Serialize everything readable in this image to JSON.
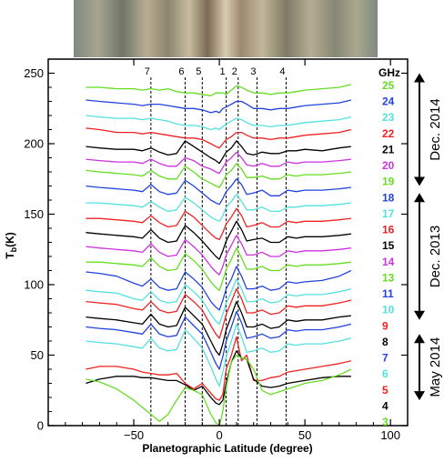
{
  "chart_data": {
    "type": "line",
    "xlabel": "Planetographic Latitude (degree)",
    "ylabel": "T_b (K)",
    "ylabel_main": "T",
    "ylabel_sub": "b",
    "ylabel_unit": "(K)",
    "xlim": [
      -100,
      110
    ],
    "ylim": [
      0,
      260
    ],
    "xticks": [
      -50,
      0,
      50,
      100
    ],
    "yticks": [
      0,
      50,
      100,
      150,
      200,
      250
    ],
    "legend_title": "GHz",
    "legend_position": "right",
    "band_lines": [
      {
        "label": "7",
        "x": -40
      },
      {
        "label": "6",
        "x": -20
      },
      {
        "label": "5",
        "x": -10
      },
      {
        "label": "1",
        "x": 4
      },
      {
        "label": "2",
        "x": 11
      },
      {
        "label": "3",
        "x": 22
      },
      {
        "label": "4",
        "x": 39
      }
    ],
    "epochs": [
      {
        "label": "Dec. 2014",
        "range": [
          170,
          250
        ]
      },
      {
        "label": "Dec. 2013",
        "range": [
          75,
          165
        ]
      },
      {
        "label": "May 2014",
        "range": [
          18,
          65
        ]
      }
    ],
    "x": [
      -78,
      -70,
      -60,
      -50,
      -45,
      -40,
      -35,
      -30,
      -25,
      -20,
      -15,
      -10,
      -5,
      -2,
      0,
      2,
      4,
      7,
      10,
      13,
      16,
      20,
      25,
      30,
      35,
      40,
      45,
      50,
      60,
      70,
      77
    ],
    "series": [
      {
        "name": "25",
        "color": "#66dd22",
        "values": [
          240,
          240,
          239,
          239,
          238,
          239,
          238,
          239,
          237,
          236,
          236,
          235,
          234,
          236,
          236,
          236,
          235,
          238,
          241,
          240,
          238,
          236,
          236,
          235,
          236,
          236,
          237,
          238,
          239,
          240,
          242
        ]
      },
      {
        "name": "24",
        "color": "#2244dd",
        "values": [
          231,
          230,
          229,
          228,
          227,
          228,
          228,
          227,
          226,
          225,
          225,
          224,
          222,
          223,
          222,
          225,
          226,
          228,
          230,
          230,
          228,
          225,
          225,
          224,
          225,
          225,
          226,
          227,
          228,
          229,
          231
        ]
      },
      {
        "name": "23",
        "color": "#55e0e0",
        "values": [
          220,
          219,
          218,
          218,
          217,
          218,
          217,
          216,
          214,
          213,
          213,
          212,
          210,
          211,
          210,
          212,
          214,
          216,
          218,
          217,
          215,
          213,
          213,
          212,
          213,
          213,
          214,
          215,
          216,
          217,
          219
        ]
      },
      {
        "name": "22",
        "color": "#ee2222",
        "values": [
          211,
          210,
          208,
          208,
          207,
          208,
          207,
          206,
          205,
          204,
          204,
          203,
          200,
          198,
          197,
          200,
          203,
          205,
          208,
          208,
          206,
          204,
          204,
          203,
          204,
          204,
          205,
          206,
          207,
          208,
          210
        ]
      },
      {
        "name": "21",
        "color": "#000000",
        "values": [
          198,
          197,
          196,
          196,
          195,
          197,
          194,
          192,
          193,
          202,
          198,
          194,
          190,
          188,
          186,
          190,
          194,
          197,
          202,
          198,
          193,
          192,
          194,
          193,
          193,
          195,
          195,
          196,
          195,
          197,
          198
        ]
      },
      {
        "name": "20",
        "color": "#cc33dd",
        "values": [
          189,
          188,
          187,
          187,
          186,
          189,
          186,
          184,
          184,
          190,
          188,
          184,
          182,
          180,
          179,
          183,
          187,
          190,
          194,
          190,
          185,
          184,
          186,
          184,
          184,
          187,
          186,
          187,
          187,
          188,
          189
        ]
      },
      {
        "name": "19",
        "color": "#66dd22",
        "values": [
          181,
          180,
          179,
          178,
          177,
          181,
          177,
          175,
          175,
          184,
          180,
          175,
          172,
          170,
          169,
          173,
          178,
          181,
          186,
          182,
          176,
          176,
          177,
          175,
          175,
          178,
          177,
          178,
          178,
          179,
          180
        ]
      },
      {
        "name": "18",
        "color": "#2244dd",
        "values": [
          170,
          169,
          168,
          167,
          166,
          171,
          166,
          164,
          165,
          174,
          170,
          165,
          160,
          158,
          157,
          161,
          166,
          170,
          175,
          171,
          164,
          165,
          167,
          163,
          163,
          167,
          166,
          167,
          167,
          168,
          169
        ]
      },
      {
        "name": "17",
        "color": "#55e0e0",
        "values": [
          158,
          158,
          157,
          156,
          155,
          159,
          155,
          152,
          153,
          162,
          158,
          153,
          148,
          146,
          145,
          149,
          155,
          159,
          164,
          159,
          153,
          153,
          155,
          152,
          152,
          155,
          155,
          156,
          156,
          157,
          158
        ]
      },
      {
        "name": "16",
        "color": "#ee2222",
        "values": [
          147,
          147,
          146,
          145,
          144,
          149,
          144,
          141,
          142,
          152,
          148,
          142,
          136,
          133,
          132,
          137,
          143,
          148,
          154,
          149,
          141,
          142,
          144,
          141,
          141,
          145,
          144,
          145,
          145,
          146,
          147
        ]
      },
      {
        "name": "15",
        "color": "#000000",
        "values": [
          137,
          136,
          135,
          134,
          133,
          139,
          133,
          130,
          131,
          142,
          137,
          131,
          124,
          120,
          118,
          124,
          131,
          138,
          145,
          139,
          131,
          132,
          133,
          130,
          130,
          134,
          133,
          134,
          134,
          135,
          136
        ]
      },
      {
        "name": "14",
        "color": "#cc33dd",
        "values": [
          127,
          126,
          125,
          124,
          123,
          129,
          123,
          120,
          121,
          132,
          127,
          121,
          113,
          109,
          107,
          113,
          121,
          128,
          135,
          129,
          121,
          121,
          123,
          120,
          120,
          124,
          123,
          124,
          124,
          125,
          126
        ]
      },
      {
        "name": "13",
        "color": "#66dd22",
        "values": [
          116,
          116,
          115,
          114,
          113,
          119,
          113,
          110,
          111,
          122,
          117,
          111,
          102,
          98,
          96,
          103,
          111,
          118,
          126,
          119,
          111,
          111,
          113,
          110,
          110,
          114,
          113,
          114,
          114,
          115,
          116
        ]
      },
      {
        "name": "11",
        "color": "#2244dd",
        "values": [
          109,
          108,
          106,
          101,
          99,
          104,
          98,
          96,
          97,
          109,
          104,
          98,
          88,
          84,
          82,
          89,
          97,
          104,
          113,
          106,
          97,
          97,
          99,
          96,
          97,
          102,
          101,
          102,
          103,
          106,
          110
        ]
      },
      {
        "name": "10",
        "color": "#55e0e0",
        "values": [
          96,
          95,
          94,
          90,
          89,
          95,
          89,
          87,
          88,
          100,
          95,
          89,
          79,
          74,
          72,
          79,
          87,
          95,
          104,
          97,
          88,
          88,
          90,
          87,
          88,
          93,
          92,
          93,
          93,
          95,
          97
        ]
      },
      {
        "name": "9",
        "color": "#ee2222",
        "values": [
          88,
          87,
          86,
          83,
          82,
          88,
          82,
          80,
          81,
          93,
          88,
          82,
          71,
          65,
          62,
          70,
          79,
          88,
          97,
          90,
          80,
          80,
          82,
          79,
          80,
          85,
          84,
          85,
          85,
          87,
          89
        ]
      },
      {
        "name": "8",
        "color": "#000000",
        "values": [
          77,
          76,
          75,
          73,
          72,
          79,
          72,
          70,
          71,
          84,
          78,
          72,
          60,
          53,
          50,
          58,
          68,
          78,
          88,
          80,
          70,
          70,
          72,
          69,
          70,
          75,
          74,
          75,
          75,
          77,
          78
        ]
      },
      {
        "name": "7",
        "color": "#2244dd",
        "values": [
          70,
          69,
          68,
          66,
          65,
          72,
          65,
          63,
          64,
          77,
          71,
          65,
          52,
          44,
          40,
          49,
          60,
          70,
          81,
          73,
          62,
          63,
          65,
          62,
          63,
          68,
          67,
          68,
          68,
          70,
          72
        ]
      },
      {
        "name": "6",
        "color": "#55e0e0",
        "values": [
          60,
          59,
          58,
          56,
          55,
          62,
          55,
          53,
          54,
          68,
          62,
          55,
          42,
          33,
          28,
          38,
          49,
          60,
          72,
          63,
          52,
          53,
          55,
          52,
          53,
          58,
          57,
          58,
          58,
          60,
          62
        ]
      },
      {
        "name": "5",
        "color": "#ee2222",
        "values": [
          40,
          42,
          42,
          40,
          38,
          37,
          36,
          36,
          37,
          30,
          26,
          30,
          23,
          19,
          18,
          22,
          40,
          50,
          63,
          46,
          50,
          32,
          32,
          34,
          35,
          38,
          39,
          40,
          42,
          44,
          46
        ]
      },
      {
        "name": "4",
        "color": "#000000",
        "values": [
          30,
          33,
          35,
          35,
          34,
          34,
          33,
          32,
          32,
          29,
          25,
          28,
          20,
          16,
          15,
          18,
          30,
          45,
          53,
          48,
          47,
          33,
          28,
          27,
          28,
          30,
          31,
          32,
          34,
          35,
          35
        ]
      },
      {
        "name": "3",
        "color": "#66dd22",
        "values": [
          33,
          31,
          26,
          18,
          13,
          8,
          3,
          8,
          18,
          27,
          25,
          22,
          8,
          2,
          0,
          10,
          27,
          45,
          50,
          48,
          47,
          40,
          25,
          22,
          24,
          26,
          28,
          30,
          32,
          36,
          40
        ]
      }
    ]
  }
}
